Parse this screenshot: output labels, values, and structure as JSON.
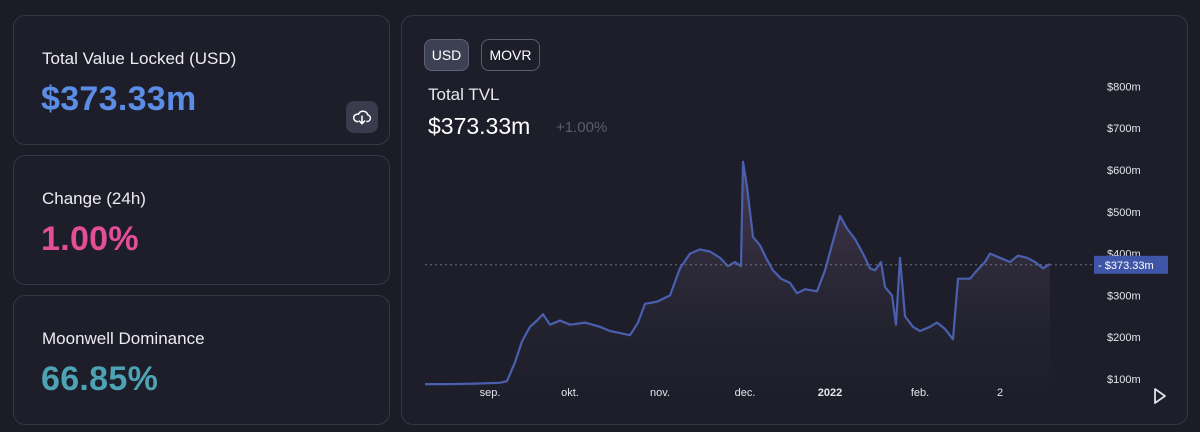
{
  "stats": {
    "tvl": {
      "label": "Total Value Locked (USD)",
      "value": "$373.33m"
    },
    "change": {
      "label": "Change (24h)",
      "value": "1.00%"
    },
    "dominance": {
      "label": "Moonwell Dominance",
      "value": "66.85%"
    }
  },
  "chart_panel": {
    "toggles": [
      "USD",
      "MOVR"
    ],
    "active_toggle": "USD",
    "title": "Total TVL",
    "value": "$373.33m",
    "change": "+1.00%"
  },
  "icons": {
    "download": "download-icon",
    "play": "play-icon"
  },
  "colors": {
    "tvl": "#5b8de6",
    "change": "#e34e97",
    "dominance": "#4da3b3",
    "line": "#4a5fb0",
    "price_tag": "#3f55a8"
  },
  "chart_data": {
    "type": "area",
    "title": "Total TVL",
    "xlabel": "",
    "ylabel": "",
    "ylim": [
      75,
      850
    ],
    "y_ticks": [
      100,
      200,
      300,
      400,
      500,
      600,
      700,
      800
    ],
    "y_tick_labels": [
      "$100m",
      "$200m",
      "$300m",
      "$400m",
      "$500m",
      "$600m",
      "$700m",
      "$800m"
    ],
    "x_ticks": [
      {
        "label": "sep.",
        "t": 65
      },
      {
        "label": "okt.",
        "t": 145
      },
      {
        "label": "nov.",
        "t": 235
      },
      {
        "label": "dec.",
        "t": 320
      },
      {
        "label": "2022",
        "t": 405,
        "bold": true
      },
      {
        "label": "feb.",
        "t": 495
      },
      {
        "label": "2",
        "t": 575
      }
    ],
    "current_value_label": "$373.33m",
    "current_value": 373.33,
    "grid": false,
    "series": [
      {
        "points": [
          [
            0,
            88
          ],
          [
            25,
            88
          ],
          [
            50,
            89
          ],
          [
            75,
            91
          ],
          [
            82,
            95
          ],
          [
            90,
            140
          ],
          [
            97,
            190
          ],
          [
            105,
            225
          ],
          [
            112,
            240
          ],
          [
            118,
            255
          ],
          [
            125,
            230
          ],
          [
            135,
            240
          ],
          [
            145,
            230
          ],
          [
            160,
            235
          ],
          [
            175,
            225
          ],
          [
            185,
            215
          ],
          [
            195,
            210
          ],
          [
            205,
            205
          ],
          [
            213,
            235
          ],
          [
            220,
            280
          ],
          [
            232,
            285
          ],
          [
            245,
            300
          ],
          [
            255,
            365
          ],
          [
            265,
            400
          ],
          [
            275,
            410
          ],
          [
            285,
            405
          ],
          [
            295,
            390
          ],
          [
            303,
            370
          ],
          [
            310,
            380
          ],
          [
            316,
            370
          ],
          [
            318,
            620
          ],
          [
            322,
            560
          ],
          [
            328,
            440
          ],
          [
            335,
            420
          ],
          [
            341,
            390
          ],
          [
            348,
            360
          ],
          [
            356,
            340
          ],
          [
            365,
            330
          ],
          [
            372,
            305
          ],
          [
            380,
            315
          ],
          [
            392,
            310
          ],
          [
            400,
            360
          ],
          [
            408,
            430
          ],
          [
            415,
            490
          ],
          [
            422,
            460
          ],
          [
            430,
            435
          ],
          [
            438,
            400
          ],
          [
            445,
            365
          ],
          [
            450,
            360
          ],
          [
            456,
            380
          ],
          [
            460,
            320
          ],
          [
            467,
            300
          ],
          [
            471,
            230
          ],
          [
            475,
            390
          ],
          [
            480,
            250
          ],
          [
            488,
            225
          ],
          [
            495,
            215
          ],
          [
            505,
            225
          ],
          [
            512,
            235
          ],
          [
            520,
            220
          ],
          [
            528,
            195
          ],
          [
            533,
            340
          ],
          [
            545,
            340
          ],
          [
            552,
            360
          ],
          [
            560,
            380
          ],
          [
            565,
            400
          ],
          [
            575,
            390
          ],
          [
            585,
            380
          ],
          [
            593,
            395
          ],
          [
            602,
            390
          ],
          [
            610,
            380
          ],
          [
            618,
            365
          ],
          [
            625,
            375
          ]
        ]
      }
    ]
  }
}
